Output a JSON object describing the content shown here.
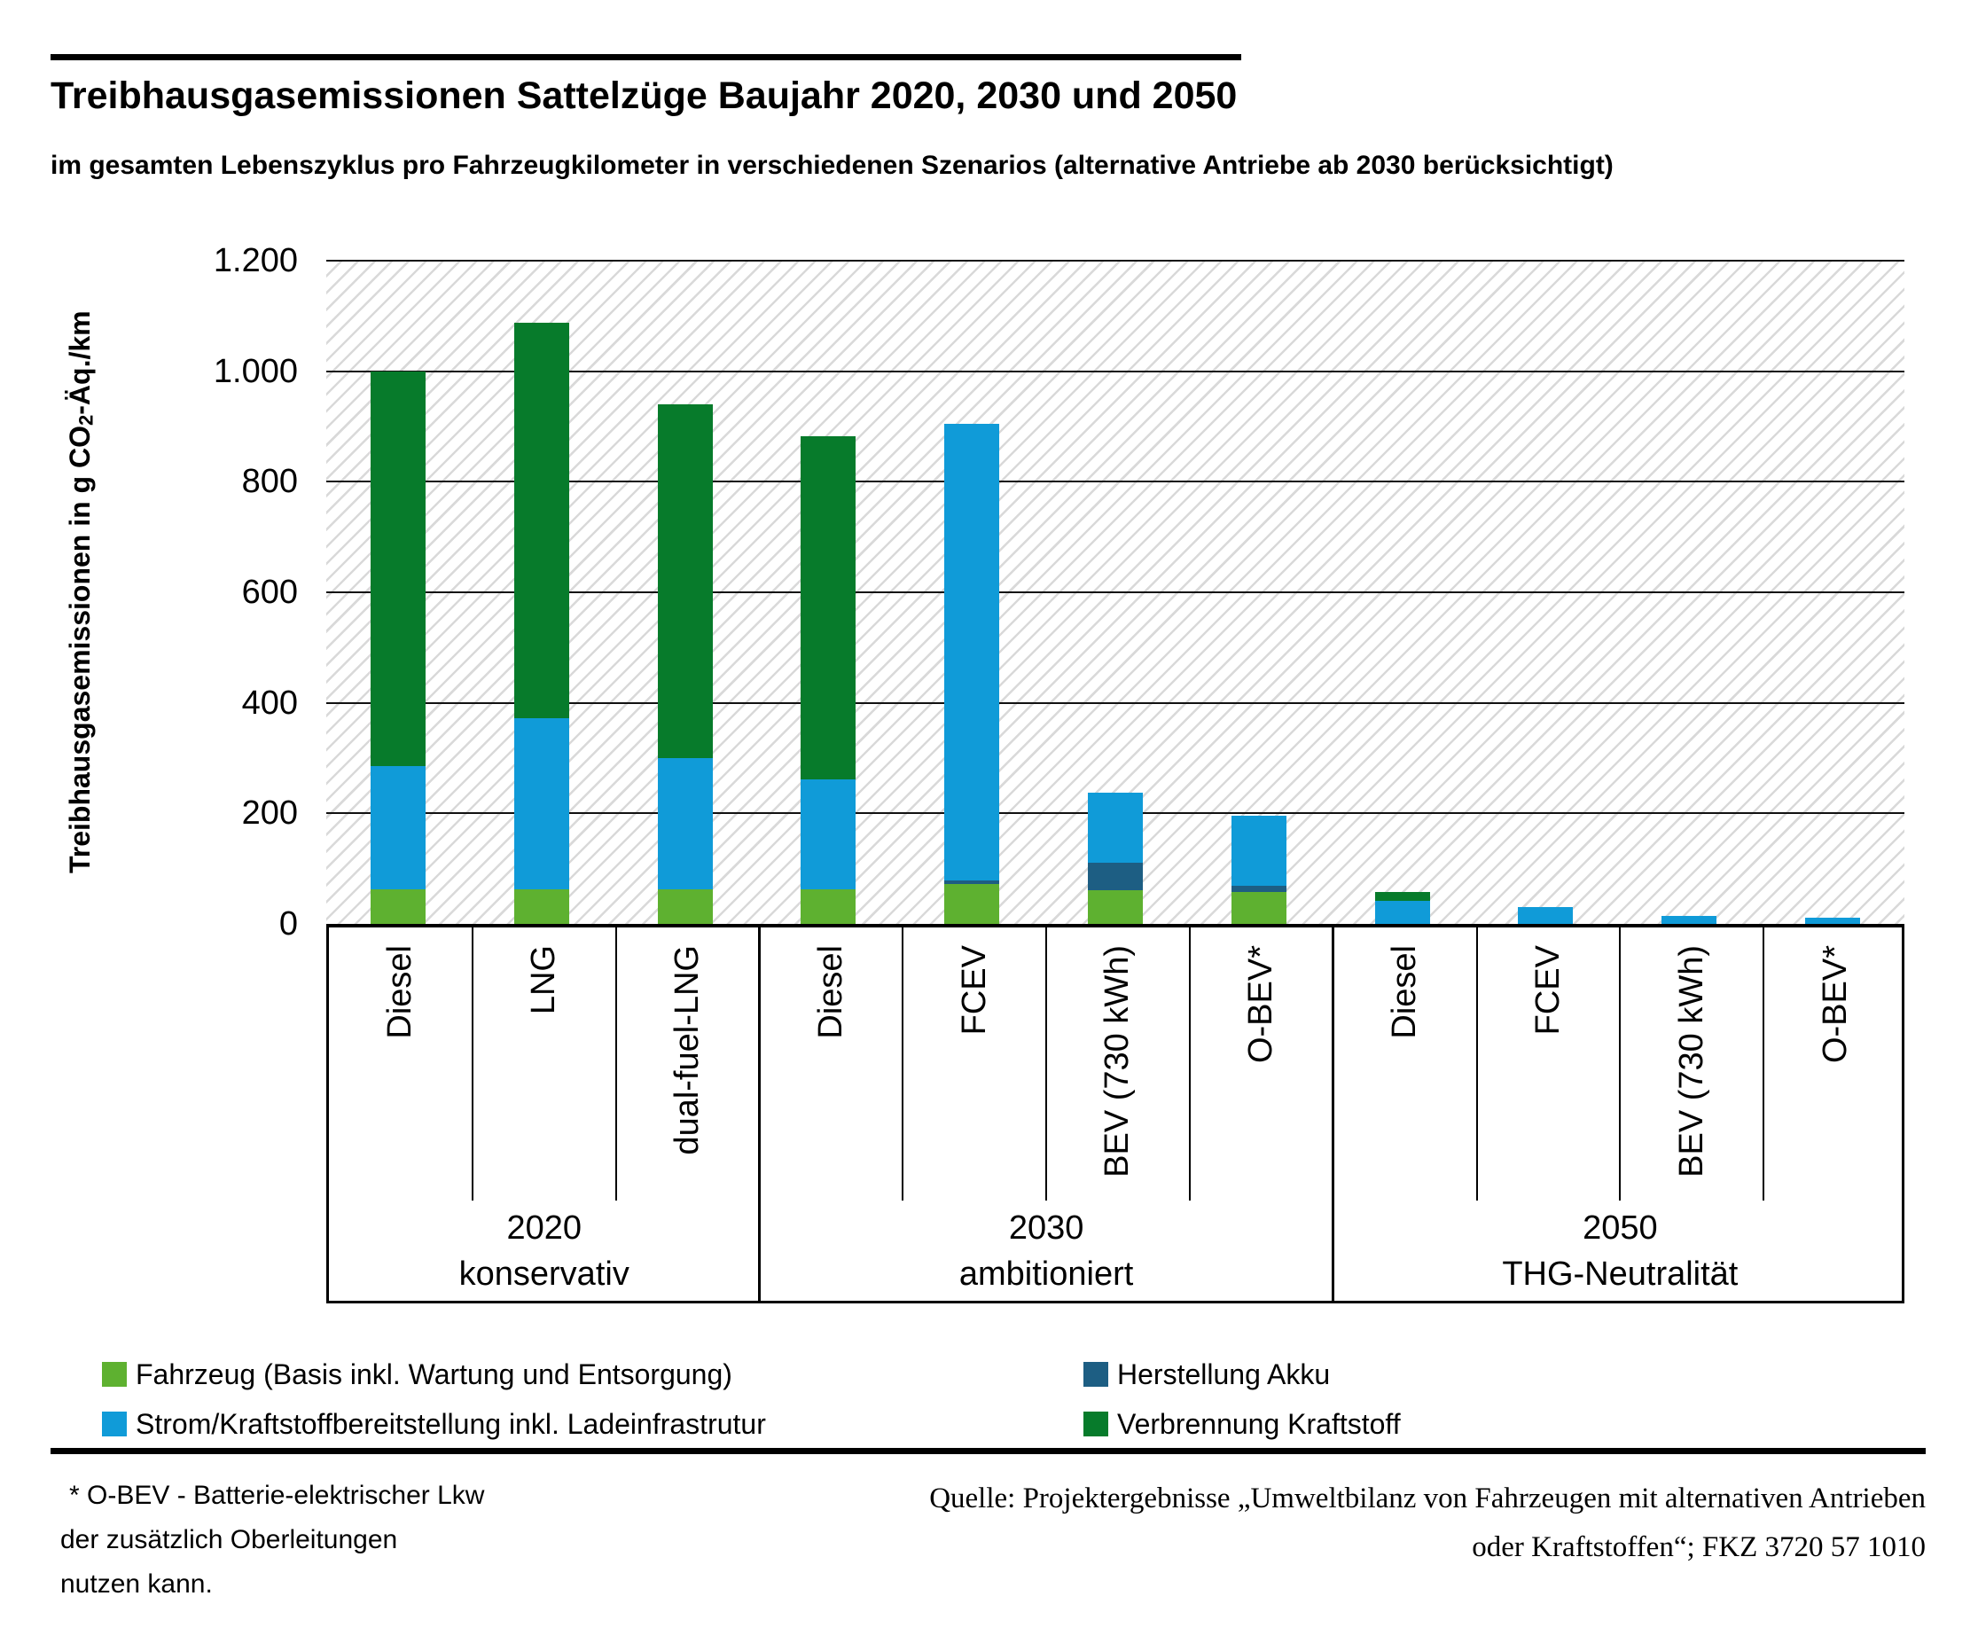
{
  "title": "Treibhausgasemissionen Sattelzüge Baujahr 2020, 2030 und 2050",
  "subtitle": "im gesamten Lebenszyklus pro Fahrzeugkilometer in verschiedenen Szenarios (alternative Antriebe ab 2030 berücksichtigt)",
  "y_axis": {
    "title_prefix": "Treibhausgasemissionen in g CO",
    "title_sub": "2",
    "title_suffix": "-Äq./km"
  },
  "chart_data": {
    "type": "bar",
    "stacked": true,
    "unit": "g CO2-Äq./km",
    "ylim": [
      0,
      1200
    ],
    "grid": true,
    "background_hatch": true,
    "yticks": [
      {
        "label": "1.200",
        "value": 1200
      },
      {
        "label": "1.000",
        "value": 1000
      },
      {
        "label": "800",
        "value": 800
      },
      {
        "label": "600",
        "value": 600
      },
      {
        "label": "400",
        "value": 400
      },
      {
        "label": "200",
        "value": 200
      },
      {
        "label": "0",
        "value": 0
      }
    ],
    "categories": [
      "Diesel",
      "LNG",
      "dual-fuel-LNG",
      "Diesel",
      "FCEV",
      "BEV (730 kWh)",
      "O-BEV*",
      "Diesel",
      "FCEV",
      "BEV (730 kWh)",
      "O-BEV*"
    ],
    "groups": [
      {
        "year": "2020",
        "scenario": "konservativ",
        "bar_count": 3
      },
      {
        "year": "2030",
        "scenario": "ambitioniert",
        "bar_count": 4
      },
      {
        "year": "2050",
        "scenario": "THG-Neutralität",
        "bar_count": 4
      }
    ],
    "series": [
      {
        "name": "Fahrzeug (Basis inkl. Wartung und Entsorgung)",
        "color": "#5eb130",
        "values": [
          62,
          62,
          62,
          62,
          73,
          61,
          57,
          0,
          0,
          0,
          0
        ]
      },
      {
        "name": "Herstellung Akku",
        "color": "#1d5e83",
        "values": [
          0,
          0,
          0,
          0,
          5,
          50,
          12,
          0,
          0,
          0,
          0
        ]
      },
      {
        "name": "Strom/Kraftstoffbereitstellung inkl. Ladeinfrastrutur",
        "color": "#109bd8",
        "values": [
          223,
          310,
          238,
          200,
          827,
          126,
          126,
          42,
          30,
          14,
          12
        ]
      },
      {
        "name": "Verbrennung Kraftstoff",
        "color": "#077b2b",
        "values": [
          715,
          716,
          640,
          620,
          0,
          0,
          0,
          16,
          0,
          0,
          0
        ]
      }
    ],
    "totals": [
      1000,
      1088,
      940,
      882,
      905,
      237,
      195,
      58,
      30,
      14,
      12
    ]
  },
  "legend": {
    "items": [
      {
        "label": "Fahrzeug (Basis inkl. Wartung und Entsorgung)",
        "color": "#5eb130",
        "row": 0,
        "col": 0
      },
      {
        "label": "Herstellung Akku",
        "color": "#1d5e83",
        "row": 0,
        "col": 1
      },
      {
        "label": "Strom/Kraftstoffbereitstellung inkl. Ladeinfrastrutur",
        "color": "#109bd8",
        "row": 1,
        "col": 0
      },
      {
        "label": "Verbrennung Kraftstoff",
        "color": "#077b2b",
        "row": 1,
        "col": 1
      }
    ]
  },
  "footnote": {
    "lines": [
      "* O-BEV - Batterie-elektrischer Lkw",
      "der zusätzlich Oberleitungen",
      "nutzen kann."
    ]
  },
  "source": {
    "lines": [
      "Quelle: Projektergebnisse „Umweltbilanz von Fahrzeugen mit alternativen Antrieben",
      "oder Kraftstoffen“; FKZ 3720 57 1010"
    ]
  },
  "colors": {
    "fahrzeug": "#5eb130",
    "akku": "#1d5e83",
    "strom": "#109bd8",
    "verbrennung": "#077b2b",
    "hatch": "#d9d9d9",
    "text": "#000000"
  }
}
